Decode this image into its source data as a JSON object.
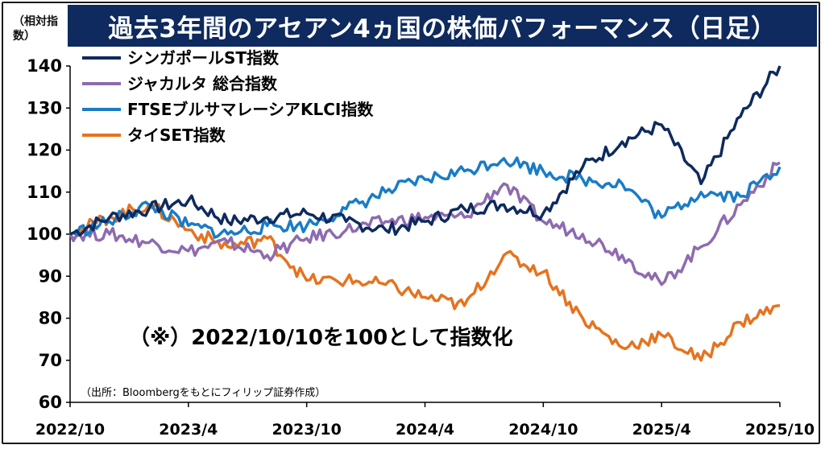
{
  "chart_data": {
    "type": "line",
    "title": "過去3年間のアセアン4ヵ国の株価パフォーマンス（日足）",
    "unit_label": "（相対指数）",
    "ylim": [
      60,
      140
    ],
    "yticks": [
      60,
      70,
      80,
      90,
      100,
      110,
      120,
      130,
      140
    ],
    "x_labels": [
      "2022/10",
      "2023/4",
      "2023/10",
      "2024/4",
      "2024/10",
      "2025/4",
      "2025/10"
    ],
    "annotation": "（※）2022/10/10を100として指数化",
    "source": "（出所：Bloombergをもとにフィリップ証券作成）",
    "x_months": [
      0,
      2,
      4,
      6,
      8,
      10,
      12,
      14,
      16,
      18,
      20,
      22,
      24,
      26,
      28,
      30,
      32,
      34,
      36
    ],
    "series": [
      {
        "name": "シンガポールST指数",
        "color": "#0e2a5e",
        "values": [
          100,
          104,
          106,
          108,
          103,
          104,
          105,
          103,
          101,
          103,
          106,
          107,
          105,
          116,
          122,
          126,
          112,
          128,
          140
        ]
      },
      {
        "name": "ジャカルタ 総合指数",
        "color": "#8e6bb0",
        "values": [
          100,
          100,
          98,
          96,
          98,
          95,
          99,
          101,
          103,
          104,
          104,
          112,
          103,
          100,
          95,
          88,
          97,
          107,
          117
        ]
      },
      {
        "name": "FTSEブルサマレーシアKLCI指数",
        "color": "#1a7cc6",
        "values": [
          100,
          103,
          107,
          102,
          100,
          102,
          102,
          106,
          110,
          113,
          115,
          118,
          115,
          113,
          112,
          104,
          110,
          109,
          116
        ]
      },
      {
        "name": "タイSET指数",
        "color": "#e5731f",
        "values": [
          100,
          104,
          107,
          101,
          97,
          99,
          89,
          89,
          88,
          85,
          83,
          95,
          91,
          80,
          73,
          76,
          70,
          79,
          83
        ]
      }
    ]
  }
}
